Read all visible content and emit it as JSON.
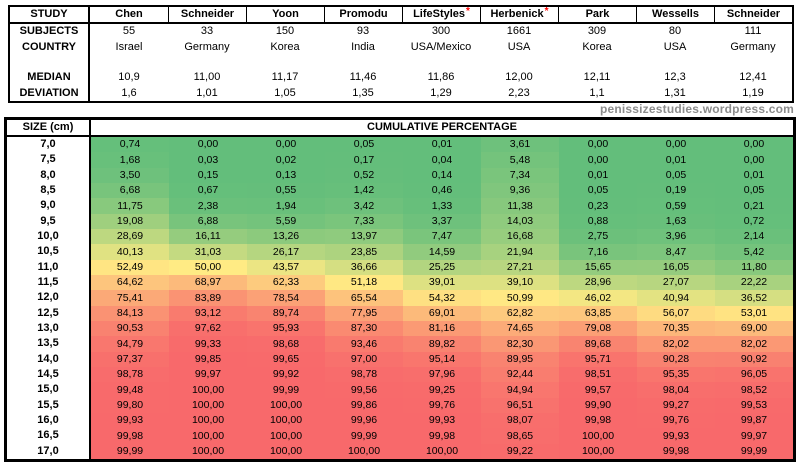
{
  "watermark": "penissizestudies.wordpress.com",
  "colors": {
    "asterisk_red": "#FF0000",
    "watermark_gray": "#8C8C8C",
    "scale_min_green": "#63BE7B",
    "scale_mid_yellow": "#FFEB84",
    "scale_max_red": "#F8696B",
    "border_black": "#000000",
    "background_white": "#FFFFFF"
  },
  "studies_table": {
    "corner_label": "STUDY",
    "row_labels": {
      "subjects": "SUBJECTS",
      "country": "COUNTRY",
      "median": "MEDIAN",
      "deviation": "DEVIATION"
    },
    "studies": [
      {
        "name": "Chen",
        "flagged": false,
        "subjects": "55",
        "country": "Israel",
        "median": "10,9",
        "deviation": "1,6"
      },
      {
        "name": "Schneider",
        "flagged": false,
        "subjects": "33",
        "country": "Germany",
        "median": "11,00",
        "deviation": "1,01"
      },
      {
        "name": "Yoon",
        "flagged": false,
        "subjects": "150",
        "country": "Korea",
        "median": "11,17",
        "deviation": "1,05"
      },
      {
        "name": "Promodu",
        "flagged": false,
        "subjects": "93",
        "country": "India",
        "median": "11,46",
        "deviation": "1,35"
      },
      {
        "name": "LifeStyles",
        "flagged": true,
        "subjects": "300",
        "country": "USA/Mexico",
        "median": "11,86",
        "deviation": "1,29"
      },
      {
        "name": "Herbenick",
        "flagged": true,
        "subjects": "1661",
        "country": "USA",
        "median": "12,00",
        "deviation": "2,23"
      },
      {
        "name": "Park",
        "flagged": false,
        "subjects": "309",
        "country": "Korea",
        "median": "12,11",
        "deviation": "1,1"
      },
      {
        "name": "Wessells",
        "flagged": false,
        "subjects": "80",
        "country": "USA",
        "median": "12,3",
        "deviation": "1,31"
      },
      {
        "name": "Schneider",
        "flagged": false,
        "subjects": "111",
        "country": "Germany",
        "median": "12,41",
        "deviation": "1,19"
      }
    ]
  },
  "heatmap_header": {
    "size_label": "SIZE (cm)",
    "title": "CUMULATIVE PERCENTAGE"
  },
  "chart_data": {
    "type": "heatmap",
    "title": "CUMULATIVE PERCENTAGE",
    "xlabel": "STUDY",
    "ylabel": "SIZE (cm)",
    "legend_position": "none",
    "decimal_separator": ",",
    "columns": [
      "Chen",
      "Schneider",
      "Yoon",
      "Promodu",
      "LifeStyles",
      "Herbenick",
      "Park",
      "Wessells",
      "Schneider"
    ],
    "sizes_cm": [
      7.0,
      7.5,
      8.0,
      8.5,
      9.0,
      9.5,
      10.0,
      10.5,
      11.0,
      11.5,
      12.0,
      12.5,
      13.0,
      13.5,
      14.0,
      14.5,
      15.0,
      15.5,
      16.0,
      16.5,
      17.0
    ],
    "values": [
      [
        0.74,
        0.0,
        0.0,
        0.05,
        0.01,
        3.61,
        0.0,
        0.0,
        0.0
      ],
      [
        1.68,
        0.03,
        0.02,
        0.17,
        0.04,
        5.48,
        0.0,
        0.01,
        0.0
      ],
      [
        3.5,
        0.15,
        0.13,
        0.52,
        0.14,
        7.34,
        0.01,
        0.05,
        0.01
      ],
      [
        6.68,
        0.67,
        0.55,
        1.42,
        0.46,
        9.36,
        0.05,
        0.19,
        0.05
      ],
      [
        11.75,
        2.38,
        1.94,
        3.42,
        1.33,
        11.38,
        0.23,
        0.59,
        0.21
      ],
      [
        19.08,
        6.88,
        5.59,
        7.33,
        3.37,
        14.03,
        0.88,
        1.63,
        0.72
      ],
      [
        28.69,
        16.11,
        13.26,
        13.97,
        7.47,
        16.68,
        2.75,
        3.96,
        2.14
      ],
      [
        40.13,
        31.03,
        26.17,
        23.85,
        14.59,
        21.94,
        7.16,
        8.47,
        5.42
      ],
      [
        52.49,
        50.0,
        43.57,
        36.66,
        25.25,
        27.21,
        15.65,
        16.05,
        11.8
      ],
      [
        64.62,
        68.97,
        62.33,
        51.18,
        39.01,
        39.1,
        28.96,
        27.07,
        22.22
      ],
      [
        75.41,
        83.89,
        78.54,
        65.54,
        54.32,
        50.99,
        46.02,
        40.94,
        36.52
      ],
      [
        84.13,
        93.12,
        89.74,
        77.95,
        69.01,
        62.82,
        63.85,
        56.07,
        53.01
      ],
      [
        90.53,
        97.62,
        95.93,
        87.3,
        81.16,
        74.65,
        79.08,
        70.35,
        69.0
      ],
      [
        94.79,
        99.33,
        98.68,
        93.46,
        89.82,
        82.3,
        89.68,
        82.02,
        82.02
      ],
      [
        97.37,
        99.85,
        99.65,
        97.0,
        95.14,
        89.95,
        95.71,
        90.28,
        90.92
      ],
      [
        98.78,
        99.97,
        99.92,
        98.78,
        97.96,
        92.44,
        98.51,
        95.35,
        96.05
      ],
      [
        99.48,
        100.0,
        99.99,
        99.56,
        99.25,
        94.94,
        99.57,
        98.04,
        98.52
      ],
      [
        99.8,
        100.0,
        100.0,
        99.86,
        99.76,
        96.51,
        99.9,
        99.27,
        99.53
      ],
      [
        99.93,
        100.0,
        100.0,
        99.96,
        99.93,
        98.07,
        99.98,
        99.76,
        99.87
      ],
      [
        99.98,
        100.0,
        100.0,
        99.99,
        99.98,
        98.65,
        100.0,
        99.93,
        99.97
      ],
      [
        99.99,
        100.0,
        100.0,
        100.0,
        100.0,
        99.22,
        100.0,
        99.98,
        99.99
      ]
    ],
    "color_scale": {
      "min_value": 0,
      "min_color": "#63BE7B",
      "mid_value": 50,
      "mid_color": "#FFEB84",
      "max_value": 100,
      "max_color": "#F8696B"
    }
  }
}
